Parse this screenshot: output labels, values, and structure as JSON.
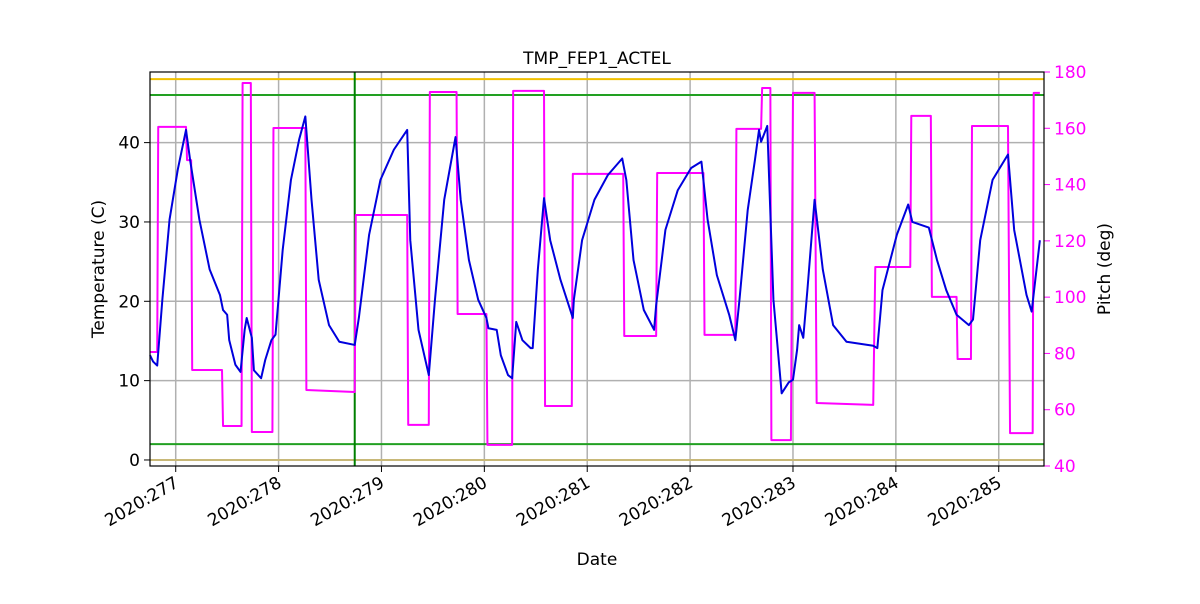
{
  "chart_data": {
    "type": "line",
    "title": "TMP_FEP1_ACTEL",
    "xlabel": "Date",
    "ylabel": "Temperature (C)",
    "y2label": "Pitch (deg)",
    "xlim": [
      276.75,
      285.44
    ],
    "ylim": [
      -0.76,
      48.9
    ],
    "y2lim": [
      40,
      180
    ],
    "xticks": [
      {
        "value": 277,
        "label": "2020:277"
      },
      {
        "value": 278,
        "label": "2020:278"
      },
      {
        "value": 279,
        "label": "2020:279"
      },
      {
        "value": 280,
        "label": "2020:280"
      },
      {
        "value": 281,
        "label": "2020:281"
      },
      {
        "value": 282,
        "label": "2020:282"
      },
      {
        "value": 283,
        "label": "2020:283"
      },
      {
        "value": 284,
        "label": "2020:284"
      },
      {
        "value": 285,
        "label": "2020:285"
      }
    ],
    "yticks": [
      0,
      10,
      20,
      30,
      40
    ],
    "y2ticks": [
      40,
      60,
      80,
      100,
      120,
      140,
      160,
      180
    ],
    "grid": true,
    "y2color": "#ff00ff",
    "hlines": [
      {
        "value": 48,
        "color": "#f0c000"
      },
      {
        "value": 46,
        "color": "#22a022"
      },
      {
        "value": 2,
        "color": "#22a022"
      },
      {
        "value": 0,
        "color": "#c8b878"
      }
    ],
    "vlines": [
      {
        "value": 278.74,
        "color": "#008000"
      }
    ],
    "series": [
      {
        "color": "#0000dd",
        "x": [
          276.75,
          276.78,
          276.82,
          276.87,
          276.94,
          277.02,
          277.1,
          277.14,
          277.23,
          277.33,
          277.43,
          277.46,
          277.5,
          277.52,
          277.58,
          277.63,
          277.67,
          277.69,
          277.74,
          277.76,
          277.83,
          277.87,
          277.93,
          277.97,
          278.04,
          278.12,
          278.2,
          278.26,
          278.32,
          278.39,
          278.49,
          278.59,
          278.74,
          278.78,
          278.88,
          278.99,
          279.12,
          279.25,
          279.28,
          279.36,
          279.46,
          279.52,
          279.61,
          279.72,
          279.77,
          279.85,
          279.94,
          280.02,
          280.04,
          280.12,
          280.16,
          280.23,
          280.27,
          280.31,
          280.37,
          280.45,
          280.47,
          280.52,
          280.58,
          280.64,
          280.74,
          280.86,
          280.87,
          280.95,
          281.07,
          281.2,
          281.34,
          281.38,
          281.45,
          281.55,
          281.65,
          281.67,
          281.76,
          281.88,
          282.01,
          282.11,
          282.17,
          282.26,
          282.38,
          282.44,
          282.48,
          282.56,
          282.63,
          282.67,
          282.69,
          282.75,
          282.81,
          282.89,
          282.96,
          283.0,
          283.04,
          283.06,
          283.1,
          283.14,
          283.21,
          283.29,
          283.39,
          283.52,
          283.78,
          283.82,
          283.87,
          284.01,
          284.12,
          284.16,
          284.32,
          284.4,
          284.49,
          284.59,
          284.71,
          284.75,
          284.82,
          284.94,
          285.09,
          285.15,
          285.27,
          285.32,
          285.4
        ],
        "values": [
          13.2,
          12.4,
          11.9,
          20.2,
          30.3,
          36.6,
          41.6,
          37.8,
          30.3,
          24.0,
          20.8,
          18.9,
          18.3,
          15.1,
          12.0,
          11.1,
          16.4,
          17.9,
          15.4,
          11.3,
          10.3,
          12.6,
          15.1,
          15.8,
          26.5,
          35.3,
          40.4,
          43.3,
          32.8,
          22.7,
          17.0,
          14.9,
          14.5,
          17.9,
          28.4,
          35.3,
          39.1,
          41.6,
          27.7,
          16.4,
          10.7,
          20.2,
          32.8,
          40.7,
          32.8,
          25.2,
          20.2,
          17.9,
          16.6,
          16.4,
          13.2,
          10.7,
          10.3,
          17.4,
          15.1,
          14.1,
          14.1,
          24.0,
          33.0,
          27.7,
          22.7,
          17.9,
          20.2,
          27.7,
          32.8,
          35.9,
          38.0,
          35.3,
          25.2,
          18.9,
          16.4,
          19.5,
          29.0,
          34.0,
          36.8,
          37.6,
          30.3,
          23.3,
          18.3,
          15.1,
          20.2,
          31.5,
          37.8,
          41.6,
          40.1,
          42.1,
          20.2,
          8.4,
          9.8,
          10.1,
          13.9,
          17.0,
          15.4,
          21.4,
          32.8,
          24.0,
          17.0,
          14.9,
          14.4,
          14.1,
          21.4,
          28.4,
          32.2,
          30.0,
          29.3,
          25.2,
          21.4,
          18.3,
          17.0,
          17.7,
          27.7,
          35.3,
          38.5,
          29.0,
          20.8,
          18.7,
          27.7
        ]
      },
      {
        "color": "#ff00ff",
        "axis": "y2",
        "x": [
          276.75,
          276.82,
          276.83,
          277.1,
          277.11,
          277.15,
          277.16,
          277.45,
          277.46,
          277.64,
          277.65,
          277.73,
          277.74,
          277.94,
          277.95,
          278.26,
          278.27,
          278.74,
          278.75,
          279.25,
          279.26,
          279.46,
          279.47,
          279.73,
          279.74,
          280.02,
          280.03,
          280.27,
          280.28,
          280.58,
          280.59,
          280.85,
          280.86,
          281.35,
          281.36,
          281.67,
          281.68,
          282.13,
          282.14,
          282.44,
          282.45,
          282.69,
          282.7,
          282.78,
          282.79,
          282.98,
          283.0,
          283.21,
          283.23,
          283.78,
          283.8,
          284.14,
          284.15,
          284.34,
          284.35,
          284.59,
          284.6,
          284.73,
          284.74,
          285.09,
          285.11,
          285.33,
          285.34,
          285.4
        ],
        "values": [
          80.5,
          80.5,
          160.5,
          160.5,
          148.7,
          148.7,
          74.1,
          74.1,
          54.2,
          54.2,
          176.1,
          176.1,
          52.1,
          52.1,
          160.1,
          160.1,
          67.0,
          66.3,
          129.2,
          129.2,
          54.6,
          54.6,
          172.9,
          172.9,
          94.0,
          94.0,
          47.5,
          47.5,
          173.3,
          173.3,
          61.3,
          61.3,
          143.8,
          143.8,
          86.2,
          86.2,
          144.1,
          144.1,
          86.6,
          86.6,
          159.8,
          159.8,
          174.3,
          174.3,
          49.2,
          49.2,
          172.6,
          172.6,
          62.4,
          61.7,
          110.7,
          110.7,
          164.4,
          164.4,
          100.1,
          100.1,
          78.0,
          78.0,
          160.8,
          160.8,
          51.7,
          51.7,
          172.6,
          172.6
        ]
      }
    ]
  }
}
